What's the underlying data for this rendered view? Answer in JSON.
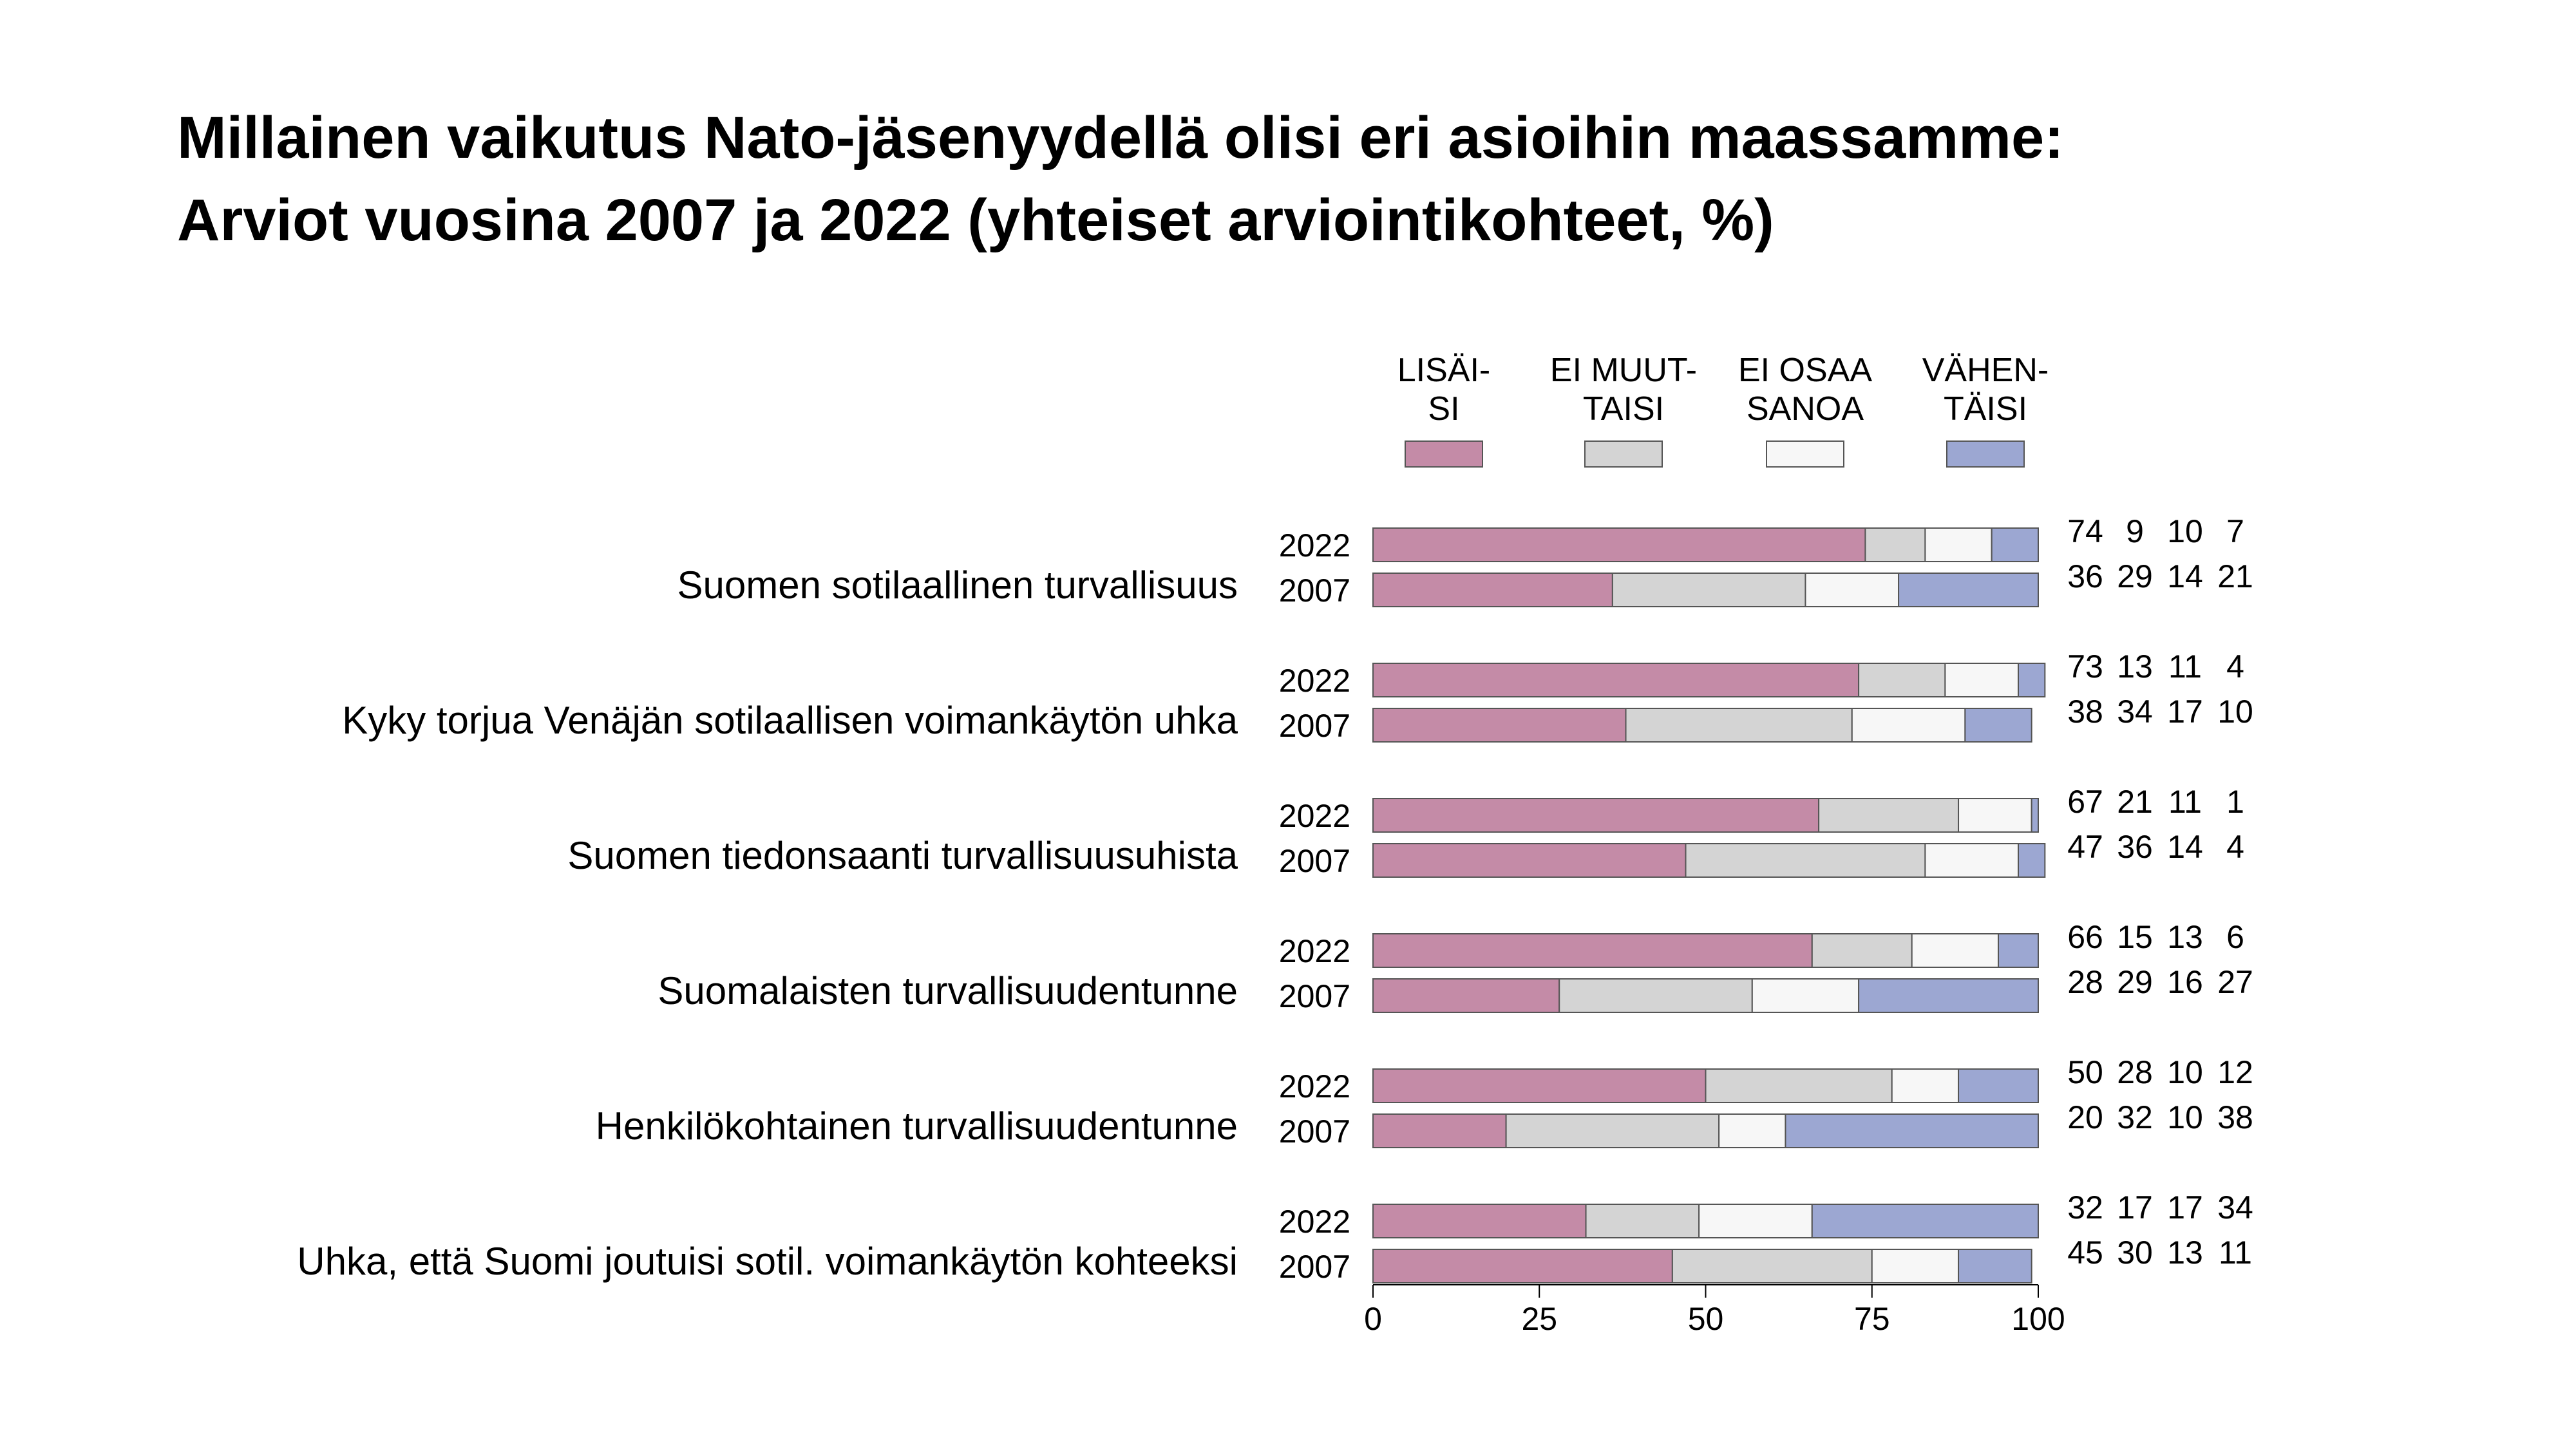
{
  "title": {
    "line1": "Millainen vaikutus Nato-jäsenyydellä olisi eri asioihin maassamme:",
    "line2": "Arviot vuosina 2007 ja 2022 (yhteiset arviointikohteet, %)"
  },
  "chart_data": {
    "type": "bar",
    "orientation": "horizontal",
    "stacked": true,
    "legend_position": "top",
    "xlim": [
      0,
      100
    ],
    "x_ticks": [
      "0",
      "25",
      "50",
      "75",
      "100"
    ],
    "grid": false,
    "series": [
      {
        "name_lines": [
          "LISÄI-",
          "SI"
        ],
        "color": "#c48ba7"
      },
      {
        "name_lines": [
          "EI MUUT-",
          "TAISI"
        ],
        "color": "#d4d4d4"
      },
      {
        "name_lines": [
          "EI OSAA",
          "SANOA"
        ],
        "color": "#f7f7f7"
      },
      {
        "name_lines": [
          "VÄHEN-",
          "TÄISI"
        ],
        "color": "#9ca7d2"
      }
    ],
    "categories": [
      {
        "label": "Suomen sotilaallinen turvallisuus",
        "rows": [
          {
            "year": "2022",
            "values": [
              74,
              9,
              10,
              7
            ]
          },
          {
            "year": "2007",
            "values": [
              36,
              29,
              14,
              21
            ]
          }
        ]
      },
      {
        "label": "Kyky torjua Venäjän sotilaallisen voimankäytön uhka",
        "rows": [
          {
            "year": "2022",
            "values": [
              73,
              13,
              11,
              4
            ]
          },
          {
            "year": "2007",
            "values": [
              38,
              34,
              17,
              10
            ]
          }
        ]
      },
      {
        "label": "Suomen tiedonsaanti turvallisuusuhista",
        "rows": [
          {
            "year": "2022",
            "values": [
              67,
              21,
              11,
              1
            ]
          },
          {
            "year": "2007",
            "values": [
              47,
              36,
              14,
              4
            ]
          }
        ]
      },
      {
        "label": "Suomalaisten turvallisuudentunne",
        "rows": [
          {
            "year": "2022",
            "values": [
              66,
              15,
              13,
              6
            ]
          },
          {
            "year": "2007",
            "values": [
              28,
              29,
              16,
              27
            ]
          }
        ]
      },
      {
        "label": "Henkilökohtainen turvallisuudentunne",
        "rows": [
          {
            "year": "2022",
            "values": [
              50,
              28,
              10,
              12
            ]
          },
          {
            "year": "2007",
            "values": [
              20,
              32,
              10,
              38
            ]
          }
        ]
      },
      {
        "label": "Uhka, että Suomi joutuisi sotil. voimankäytön kohteeksi",
        "rows": [
          {
            "year": "2022",
            "values": [
              32,
              17,
              17,
              34
            ]
          },
          {
            "year": "2007",
            "values": [
              45,
              30,
              13,
              11
            ]
          }
        ]
      }
    ]
  }
}
